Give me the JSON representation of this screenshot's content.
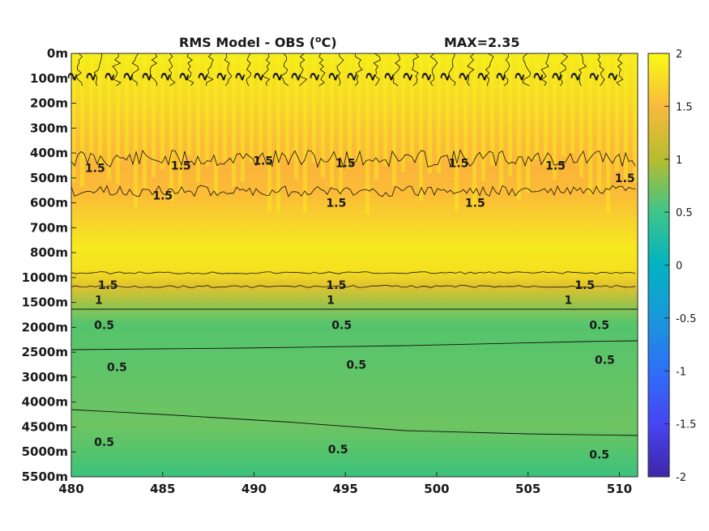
{
  "chart_data": {
    "type": "heatmap",
    "title": "RMS Model - OBS (",
    "title_unit": "°C",
    "title_sup": "o",
    "title_unit_rest": "C)",
    "max_label": "MAX=2.35",
    "xlim": [
      480,
      511
    ],
    "x_ticks": [
      "480",
      "485",
      "490",
      "495",
      "500",
      "505",
      "510"
    ],
    "x_tick_values": [
      480,
      485,
      490,
      495,
      500,
      505,
      510
    ],
    "y_ticks": [
      "0m",
      "100m",
      "200m",
      "300m",
      "400m",
      "500m",
      "600m",
      "700m",
      "800m",
      "1000m",
      "1500m",
      "2000m",
      "2500m",
      "3000m",
      "4000m",
      "4500m",
      "5000m",
      "5500m"
    ],
    "depth_profile": [
      {
        "depth": "0m",
        "value": 2.0
      },
      {
        "depth": "100m",
        "value": 2.05
      },
      {
        "depth": "200m",
        "value": 1.9
      },
      {
        "depth": "300m",
        "value": 1.75
      },
      {
        "depth": "400m",
        "value": 1.5
      },
      {
        "depth": "500m",
        "value": 1.4
      },
      {
        "depth": "600m",
        "value": 1.5
      },
      {
        "depth": "700m",
        "value": 1.8
      },
      {
        "depth": "800m",
        "value": 1.95
      },
      {
        "depth": "1000m",
        "value": 1.8
      },
      {
        "depth": "1500m",
        "value": 1.1
      },
      {
        "depth": "2000m",
        "value": 0.55
      },
      {
        "depth": "2500m",
        "value": 0.5
      },
      {
        "depth": "3000m",
        "value": 0.55
      },
      {
        "depth": "4000m",
        "value": 0.55
      },
      {
        "depth": "4500m",
        "value": 0.5
      },
      {
        "depth": "5000m",
        "value": 0.45
      },
      {
        "depth": "5500m",
        "value": 0.4
      }
    ],
    "contour_labels": [
      {
        "text": "1.5",
        "x": 481.3,
        "depth_index": 4.6
      },
      {
        "text": "1.5",
        "x": 486.0,
        "depth_index": 4.5
      },
      {
        "text": "1.5",
        "x": 490.5,
        "depth_index": 4.3
      },
      {
        "text": "1.5",
        "x": 495.0,
        "depth_index": 4.4
      },
      {
        "text": "1.5",
        "x": 501.2,
        "depth_index": 4.4
      },
      {
        "text": "1.5",
        "x": 506.5,
        "depth_index": 4.5
      },
      {
        "text": "1.5",
        "x": 510.3,
        "depth_index": 5.0
      },
      {
        "text": "1.5",
        "x": 485.0,
        "depth_index": 5.7
      },
      {
        "text": "1.5",
        "x": 494.5,
        "depth_index": 6.0
      },
      {
        "text": "1.5",
        "x": 502.1,
        "depth_index": 6.0
      },
      {
        "text": "1.5",
        "x": 482.0,
        "depth_index": 9.3
      },
      {
        "text": "1.5",
        "x": 494.5,
        "depth_index": 9.3
      },
      {
        "text": "1.5",
        "x": 508.1,
        "depth_index": 9.3
      },
      {
        "text": "1",
        "x": 481.5,
        "depth_index": 9.9
      },
      {
        "text": "1",
        "x": 494.2,
        "depth_index": 9.9
      },
      {
        "text": "1",
        "x": 507.2,
        "depth_index": 9.9
      },
      {
        "text": "0.5",
        "x": 481.8,
        "depth_index": 10.9
      },
      {
        "text": "0.5",
        "x": 494.8,
        "depth_index": 10.9
      },
      {
        "text": "0.5",
        "x": 508.9,
        "depth_index": 10.9
      },
      {
        "text": "0.5",
        "x": 482.5,
        "depth_index": 12.6
      },
      {
        "text": "0.5",
        "x": 495.6,
        "depth_index": 12.5
      },
      {
        "text": "0.5",
        "x": 509.2,
        "depth_index": 12.3
      },
      {
        "text": "0.5",
        "x": 481.8,
        "depth_index": 15.6
      },
      {
        "text": "0.5",
        "x": 494.6,
        "depth_index": 15.9
      },
      {
        "text": "0.5",
        "x": 508.9,
        "depth_index": 16.1
      }
    ],
    "surface_labels": [
      "2",
      "2",
      "2",
      "2",
      "2",
      "2",
      "2",
      "2",
      "2",
      "2",
      "2",
      "2",
      "2",
      "2",
      "2",
      "2",
      "2",
      "2",
      "2",
      "2",
      "2",
      "2",
      "2",
      "2",
      "2",
      "2",
      "2",
      "2",
      "2",
      "2"
    ],
    "colorbar": {
      "min": -2,
      "max": 2,
      "ticks": [
        "2",
        "1.5",
        "1",
        "0.5",
        "0",
        "-0.5",
        "-1",
        "-1.5",
        "-2"
      ],
      "colormap": "parula"
    },
    "grid": false
  }
}
